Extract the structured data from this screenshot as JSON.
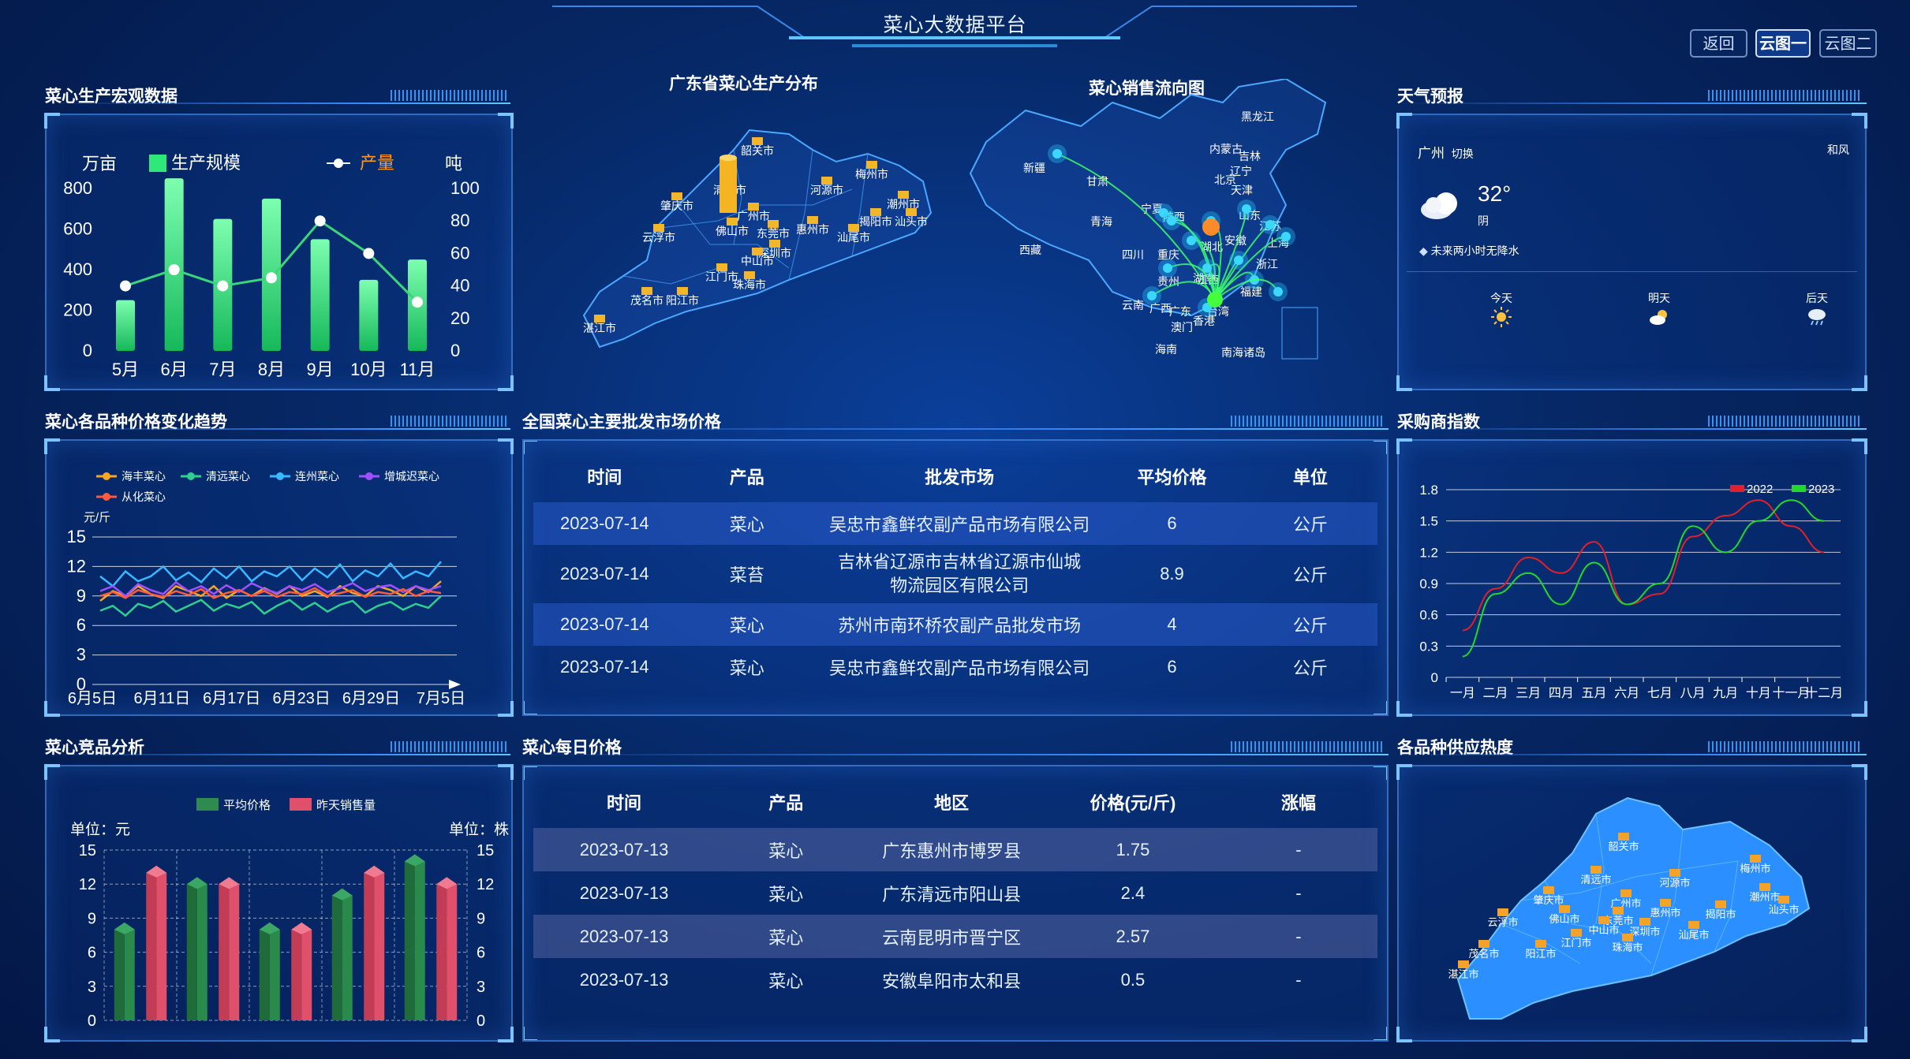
{
  "header": {
    "title": "菜心大数据平台",
    "buttons": [
      {
        "label": "返回"
      },
      {
        "label": "云图一"
      },
      {
        "label": "云图二"
      }
    ]
  },
  "sections": {
    "production": "菜心生产宏观数据",
    "price_trend": "菜心各品种价格变化趋势",
    "competitor": "菜心竞品分析",
    "gd_map": "广东省菜心生产分布",
    "flow_map": "菜心销售流向图",
    "wholesale": "全国菜心主要批发市场价格",
    "daily": "菜心每日价格",
    "weather": "天气预报",
    "buyer_index": "采购商指数",
    "supply_heat": "各品种供应热度"
  },
  "weather": {
    "city": "广州",
    "switch": "切换",
    "wind": "和风",
    "temp": "32°",
    "cond": "阴",
    "forecast_note": "未来两小时无降水",
    "days": [
      {
        "label": "今天",
        "icon": "sun-icon"
      },
      {
        "label": "明天",
        "icon": "partly-cloudy-icon"
      },
      {
        "label": "后天",
        "icon": "rain-cloud-icon"
      }
    ]
  },
  "wholesale_table": {
    "headers": [
      "时间",
      "产品",
      "批发市场",
      "平均价格",
      "单位"
    ],
    "rows": [
      [
        "2023-07-14",
        "菜心",
        "吴忠市鑫鲜农副产品市场有限公司",
        "6",
        "公斤"
      ],
      [
        "2023-07-14",
        "菜苔",
        "吉林省辽源市吉林省辽源市仙城物流园区有限公司",
        "8.9",
        "公斤"
      ],
      [
        "2023-07-14",
        "菜心",
        "苏州市南环桥农副产品批发市场",
        "4",
        "公斤"
      ],
      [
        "2023-07-14",
        "菜心",
        "吴忠市鑫鲜农副产品市场有限公司",
        "6",
        "公斤"
      ]
    ]
  },
  "daily_table": {
    "headers": [
      "时间",
      "产品",
      "地区",
      "价格(元/斤)",
      "涨幅"
    ],
    "rows": [
      [
        "2023-07-13",
        "菜心",
        "广东惠州市博罗县",
        "1.75",
        "-"
      ],
      [
        "2023-07-13",
        "菜心",
        "广东清远市阳山县",
        "2.4",
        "-"
      ],
      [
        "2023-07-13",
        "菜心",
        "云南昆明市晋宁区",
        "2.57",
        "-"
      ],
      [
        "2023-07-13",
        "菜心",
        "安徽阜阳市太和县",
        "0.5",
        "-"
      ]
    ]
  },
  "gd_cities": [
    "韶关市",
    "梅州市",
    "清远市",
    "河源市",
    "肇庆市",
    "潮州市",
    "广州市",
    "惠州市",
    "揭阳市",
    "汕头市",
    "云浮市",
    "佛山市",
    "东莞市",
    "汕尾市",
    "深圳市",
    "江门市",
    "中山市",
    "珠海市",
    "茂名市",
    "阳江市",
    "湛江市"
  ],
  "flow_labels": [
    "新疆",
    "甘肃",
    "青海",
    "西藏",
    "宁夏",
    "陕西",
    "内蒙古",
    "黑龙江",
    "吉林",
    "辽宁",
    "北京",
    "天津",
    "山东",
    "江苏",
    "上海",
    "安徽",
    "湖北",
    "四川",
    "重庆",
    "贵州",
    "云南",
    "广西",
    "广东",
    "香港",
    "澳门",
    "台湾",
    "海南",
    "南海诸岛",
    "江西",
    "浙江",
    "福建",
    "湖南"
  ],
  "supply_cities": [
    "韶关市",
    "梅州市",
    "清远市",
    "河源市",
    "肇庆市",
    "潮州市",
    "广州市",
    "惠州市",
    "揭阳市",
    "汕头市",
    "云浮市",
    "佛山市",
    "东莞市",
    "汕尾市",
    "深圳市",
    "江门市",
    "中山市",
    "珠海市",
    "茂名市",
    "阳江市",
    "湛江市"
  ],
  "chart_data": [
    {
      "type": "bar",
      "name": "production",
      "categories": [
        "5月",
        "6月",
        "7月",
        "8月",
        "9月",
        "10月",
        "11月"
      ],
      "series": [
        {
          "name": "生产规模",
          "type": "bar",
          "axis": "left",
          "values": [
            250,
            850,
            650,
            750,
            550,
            350,
            450
          ]
        },
        {
          "name": "产量",
          "type": "line",
          "axis": "right",
          "values": [
            40,
            50,
            40,
            45,
            80,
            60,
            30
          ]
        }
      ],
      "y_left": {
        "label": "万亩",
        "min": 0,
        "max": 800,
        "ticks": [
          0,
          200,
          400,
          600,
          800
        ]
      },
      "y_right": {
        "label": "吨",
        "min": 0,
        "max": 100,
        "ticks": [
          0,
          20,
          40,
          60,
          80,
          100
        ]
      },
      "colors": {
        "bar": "#2ee87a",
        "line": "#39d67a"
      }
    },
    {
      "type": "line",
      "name": "price_trend",
      "ylabel": "元/斤",
      "ylim": [
        0,
        15
      ],
      "yticks": [
        0,
        3,
        6,
        9,
        12,
        15
      ],
      "xticks": [
        "6月5日",
        "6月11日",
        "6月17日",
        "6月23日",
        "6月29日",
        "7月5日"
      ],
      "series": [
        {
          "name": "海丰菜心",
          "color": "#f5a623",
          "values": [
            8.5,
            9.5,
            9,
            10,
            9.2,
            8.8,
            10,
            9.5,
            9,
            10,
            8.8,
            9.6,
            9,
            9.8,
            9.2,
            10,
            9,
            9.5,
            8.9,
            10,
            9.3,
            9,
            10,
            9.6,
            9,
            10,
            9.4,
            10.5
          ]
        },
        {
          "name": "清远菜心",
          "color": "#2ecf8f",
          "values": [
            7.5,
            8,
            7,
            8.2,
            7.8,
            8.5,
            7.4,
            8,
            8.6,
            7.5,
            8.2,
            7.8,
            8.4,
            7.2,
            8,
            8.6,
            7.6,
            8.3,
            7.4,
            8.1,
            8.5,
            7.3,
            8,
            8.4,
            7.6,
            8.2,
            7.8,
            9
          ]
        },
        {
          "name": "连州菜心",
          "color": "#38b8ff",
          "values": [
            11,
            10,
            11.5,
            10.5,
            11,
            12,
            10.6,
            11.4,
            10.4,
            11.8,
            10.8,
            12,
            10.5,
            11.5,
            11,
            12,
            10.6,
            11.8,
            10.9,
            12.2,
            10.5,
            11.6,
            11,
            12.3,
            10.8,
            11.5,
            11,
            12.5
          ]
        },
        {
          "name": "增城迟菜心",
          "color": "#a050ff",
          "values": [
            9.5,
            10,
            9,
            10.2,
            9.6,
            9.2,
            10.4,
            9.5,
            10,
            9.2,
            10.1,
            9.4,
            10.3,
            9.7,
            9.3,
            10,
            9.6,
            10.2,
            9.4,
            9.8,
            10.3,
            9.5,
            9.9,
            10.1,
            9.4,
            10,
            9.6,
            10
          ]
        },
        {
          "name": "从化菜心",
          "color": "#ff5a3c",
          "values": [
            9,
            9.4,
            8.8,
            9.6,
            9.2,
            8.9,
            9.5,
            9.1,
            9.7,
            8.8,
            9.3,
            9.6,
            9,
            9.5,
            8.9,
            9.4,
            9.2,
            9.8,
            9,
            9.3,
            9.6,
            8.9,
            9.4,
            9.2,
            9.7,
            9,
            9.5,
            9.3
          ]
        }
      ]
    },
    {
      "type": "bar",
      "name": "competitor",
      "legend": [
        "平均价格",
        "昨天销售量"
      ],
      "y_left": {
        "label": "单位：元",
        "min": 0,
        "max": 15,
        "ticks": [
          0,
          3,
          6,
          9,
          12,
          15
        ]
      },
      "y_right": {
        "label": "单位：株",
        "min": 0,
        "max": 15,
        "ticks": [
          0,
          3,
          6,
          9,
          12,
          15
        ]
      },
      "series": [
        {
          "name": "平均价格",
          "color": "#2e8a4e",
          "values": [
            8,
            12,
            8,
            11,
            14
          ]
        },
        {
          "name": "昨天销售量",
          "color": "#e0506a",
          "values": [
            13,
            12,
            8,
            13,
            12
          ]
        }
      ]
    },
    {
      "type": "line",
      "name": "buyer_index",
      "categories": [
        "一月",
        "二月",
        "三月",
        "四月",
        "五月",
        "六月",
        "七月",
        "八月",
        "九月",
        "十月",
        "十一月",
        "十二月"
      ],
      "ylim": [
        0,
        1.8
      ],
      "yticks": [
        0,
        0.3,
        0.6,
        0.9,
        1.2,
        1.5,
        1.8
      ],
      "series": [
        {
          "name": "2022",
          "color": "#e0202a",
          "values": [
            0.45,
            0.85,
            1.15,
            1.0,
            1.3,
            0.7,
            0.8,
            1.35,
            1.55,
            1.7,
            1.45,
            1.2
          ]
        },
        {
          "name": "2023",
          "color": "#22d82a",
          "values": [
            0.2,
            0.8,
            1.0,
            0.7,
            1.1,
            0.7,
            0.9,
            1.45,
            1.2,
            1.5,
            1.7,
            1.5
          ]
        }
      ]
    }
  ]
}
